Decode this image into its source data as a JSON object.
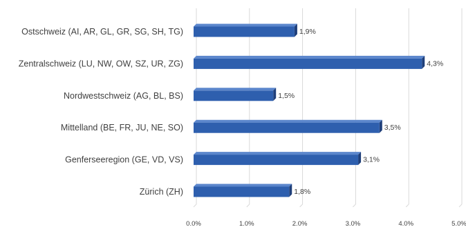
{
  "chart_data": {
    "type": "bar",
    "orientation": "horizontal",
    "categories": [
      "Ostschweiz (AI, AR, GL, GR, SG, SH, TG)",
      "Zentralschweiz (LU, NW, OW, SZ, UR, ZG)",
      "Nordwestschweiz (AG, BL, BS)",
      "Mittelland (BE, FR, JU, NE, SO)",
      "Genferseeregion (GE, VD, VS)",
      "Zürich (ZH)"
    ],
    "values": [
      1.9,
      4.3,
      1.5,
      3.5,
      3.1,
      1.8
    ],
    "value_labels": [
      "1,9%",
      "4,3%",
      "1,5%",
      "3,5%",
      "3,1%",
      "1,8%"
    ],
    "x_ticks": [
      0,
      1,
      2,
      3,
      4,
      5
    ],
    "x_tick_labels": [
      "0.0%",
      "1.0%",
      "2.0%",
      "3.0%",
      "4.0%",
      "5.0%"
    ],
    "xlim": [
      0,
      5
    ],
    "grid": true,
    "bar_color": "#2E5FAE",
    "bar_top_color": "#5B86CC",
    "bar_end_color": "#1F3F7A",
    "grid_color": "#D9D9D9",
    "title": "",
    "xlabel": "",
    "ylabel": ""
  }
}
